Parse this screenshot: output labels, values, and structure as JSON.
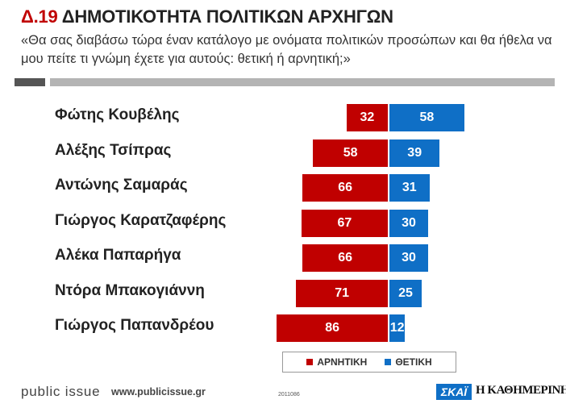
{
  "header": {
    "title_number": "Δ.19",
    "title_text": "ΔΗΜΟΤΙΚΟΤΗΤΑ ΠΟΛΙΤΙΚΩΝ ΑΡΧΗΓΩΝ",
    "subtitle": "«Θα σας διαβάσω τώρα έναν κατάλογο με ονόματα πολιτικών προσώπων και θα ήθελα να μου πείτε τι γνώμη έχετε για αυτούς: θετική ή αρνητική;»"
  },
  "chart_data": {
    "type": "bar",
    "orientation": "horizontal-diverging",
    "categories": [
      "Φώτης Κουβέλης",
      "Αλέξης Τσίπρας",
      "Αντώνης Σαμαράς",
      "Γιώργος Καρατζαφέρης",
      "Αλέκα Παπαρήγα",
      "Ντόρα Μπακογιάννη",
      "Γιώργος Παπανδρέου"
    ],
    "series": [
      {
        "name": "ΑΡΝΗΤΙΚΗ",
        "values": [
          32,
          58,
          66,
          67,
          66,
          71,
          86
        ],
        "color": "#c00000",
        "direction": "left"
      },
      {
        "name": "ΘΕΤΙΚΗ",
        "values": [
          58,
          39,
          31,
          30,
          30,
          25,
          12
        ],
        "color": "#0f6fc6",
        "direction": "right"
      }
    ],
    "legend_position": "bottom-center",
    "grid": false
  },
  "footer": {
    "brand": "public issue",
    "url": "www.publicissue.gr",
    "code": "2011086",
    "logo_skai": "ΣΚΑΪ",
    "logo_kathimerini": "Η ΚΑΘΗΜΕΡΙΝΗ"
  }
}
